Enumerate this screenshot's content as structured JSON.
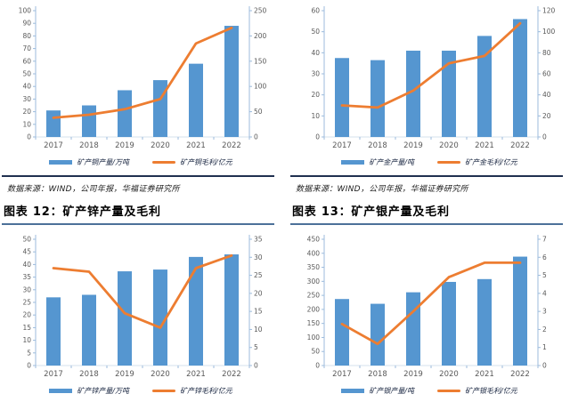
{
  "source_note": "数据来源：WIND，公司年报，华福证券研究所",
  "figures": [
    {
      "title": "图表 12：矿产锌产量及毛利"
    },
    {
      "title": "图表 13：矿产银产量及毛利"
    }
  ],
  "colors": {
    "bar": "#5596d0",
    "line": "#ed7d31",
    "axis": "#9cbbdc",
    "baseline": "#d5e0ec",
    "tick_label": "#595959",
    "separator": "#203050",
    "title_rule": "#4c7199"
  },
  "chart_data": [
    {
      "key": "copper",
      "type": "bar",
      "title": "",
      "x": [
        "2017",
        "2018",
        "2019",
        "2020",
        "2021",
        "2022"
      ],
      "series": [
        {
          "name": "矿产铜产量/万吨",
          "type": "bar",
          "axis": "left",
          "values": [
            21,
            25,
            37,
            45,
            58,
            88
          ]
        },
        {
          "name": "矿产铜毛利/亿元",
          "type": "line",
          "axis": "right",
          "values": [
            38,
            44,
            55,
            75,
            185,
            216
          ]
        }
      ],
      "left_axis": {
        "min": 0,
        "max": 100,
        "step": 10
      },
      "right_axis": {
        "min": 0,
        "max": 250,
        "step": 50
      },
      "legend_position": "bottom",
      "grid": false
    },
    {
      "key": "gold",
      "type": "bar",
      "title": "",
      "x": [
        "2017",
        "2018",
        "2019",
        "2020",
        "2021",
        "2022"
      ],
      "series": [
        {
          "name": "矿产金产量/吨",
          "type": "bar",
          "axis": "left",
          "values": [
            37.5,
            36.5,
            41,
            41,
            48,
            56
          ]
        },
        {
          "name": "矿产金毛利/亿元",
          "type": "line",
          "axis": "right",
          "values": [
            30,
            28,
            44,
            70,
            77,
            108
          ]
        }
      ],
      "left_axis": {
        "min": 0,
        "max": 60,
        "step": 10
      },
      "right_axis": {
        "min": 0,
        "max": 120,
        "step": 20
      },
      "legend_position": "bottom",
      "grid": false
    },
    {
      "key": "zinc",
      "type": "bar",
      "title": "图表 12：矿产锌产量及毛利",
      "x": [
        "2017",
        "2018",
        "2019",
        "2020",
        "2021",
        "2022"
      ],
      "series": [
        {
          "name": "矿产锌产量/万吨",
          "type": "bar",
          "axis": "left",
          "values": [
            27,
            28,
            37.3,
            38,
            43,
            44
          ]
        },
        {
          "name": "矿产锌毛利/亿元",
          "type": "line",
          "axis": "right",
          "values": [
            27,
            26,
            14.5,
            10.5,
            27,
            30.5
          ]
        }
      ],
      "left_axis": {
        "min": 0,
        "max": 50,
        "step": 5
      },
      "right_axis": {
        "min": 0,
        "max": 35,
        "step": 5
      },
      "legend_position": "bottom",
      "grid": false
    },
    {
      "key": "silver",
      "type": "bar",
      "title": "图表 13：矿产银产量及毛利",
      "x": [
        "2017",
        "2018",
        "2019",
        "2020",
        "2021",
        "2022"
      ],
      "series": [
        {
          "name": "矿产银产量/吨",
          "type": "bar",
          "axis": "left",
          "values": [
            237,
            220,
            261,
            298,
            308,
            388
          ]
        },
        {
          "name": "矿产银毛利/亿元",
          "type": "line",
          "axis": "right",
          "values": [
            2.3,
            1.2,
            3.0,
            4.9,
            5.7,
            5.7
          ]
        }
      ],
      "left_axis": {
        "min": 0,
        "max": 450,
        "step": 50
      },
      "right_axis": {
        "min": 0,
        "max": 7,
        "step": 1
      },
      "legend_position": "bottom",
      "grid": false
    }
  ]
}
